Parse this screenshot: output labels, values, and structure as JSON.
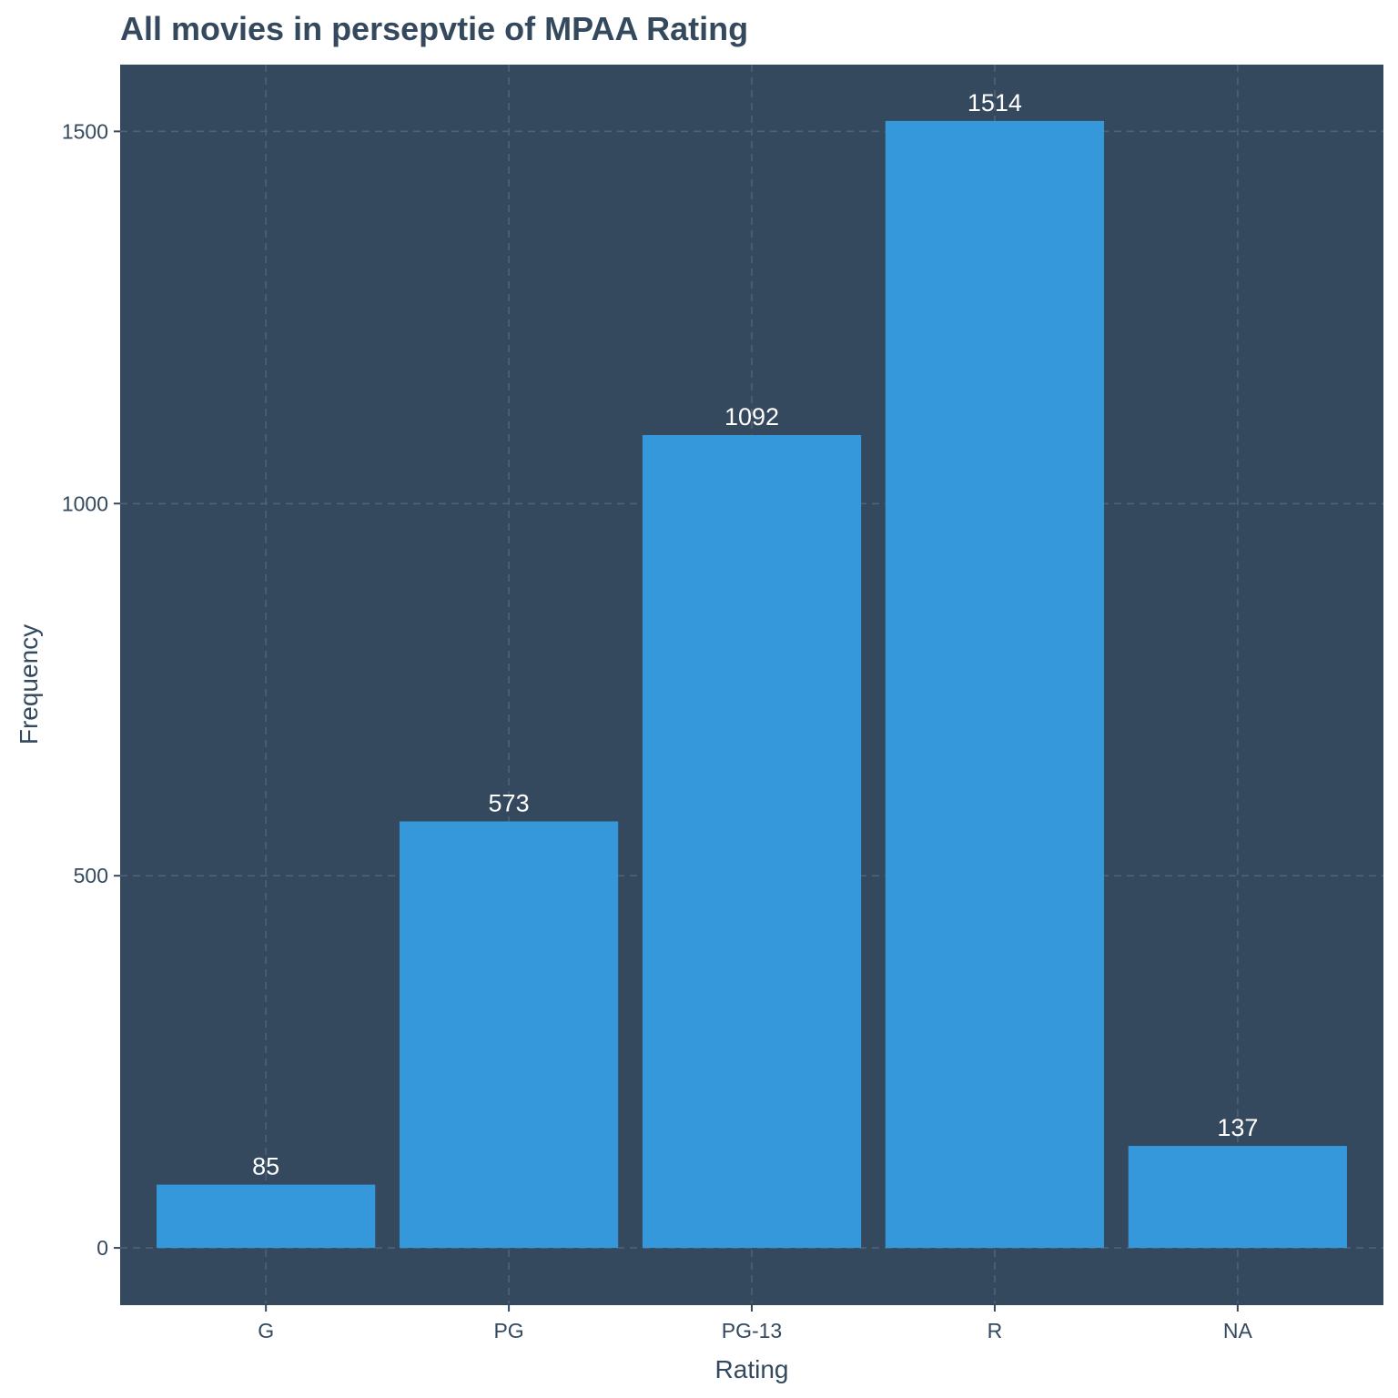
{
  "colors": {
    "panel_background": "#34495e",
    "bar_fill": "#3498db",
    "text": "#34495e",
    "data_label": "#ffffff",
    "grid": "#4f6078"
  },
  "chart_data": {
    "type": "bar",
    "title": "All movies in persepvtie of MPAA Rating",
    "xlabel": "Rating",
    "ylabel": "Frequency",
    "categories": [
      "G",
      "PG",
      "PG-13",
      "R",
      "NA"
    ],
    "values": [
      85,
      573,
      1092,
      1514,
      137
    ],
    "data_labels": [
      "85",
      "573",
      "1092",
      "1514",
      "137"
    ],
    "yticks": [
      0,
      500,
      1000,
      1500
    ],
    "ytick_labels": [
      "0",
      "500",
      "1000",
      "1500"
    ],
    "ylim": [
      -75.7,
      1589.7
    ],
    "grid": true,
    "legend": "none"
  }
}
